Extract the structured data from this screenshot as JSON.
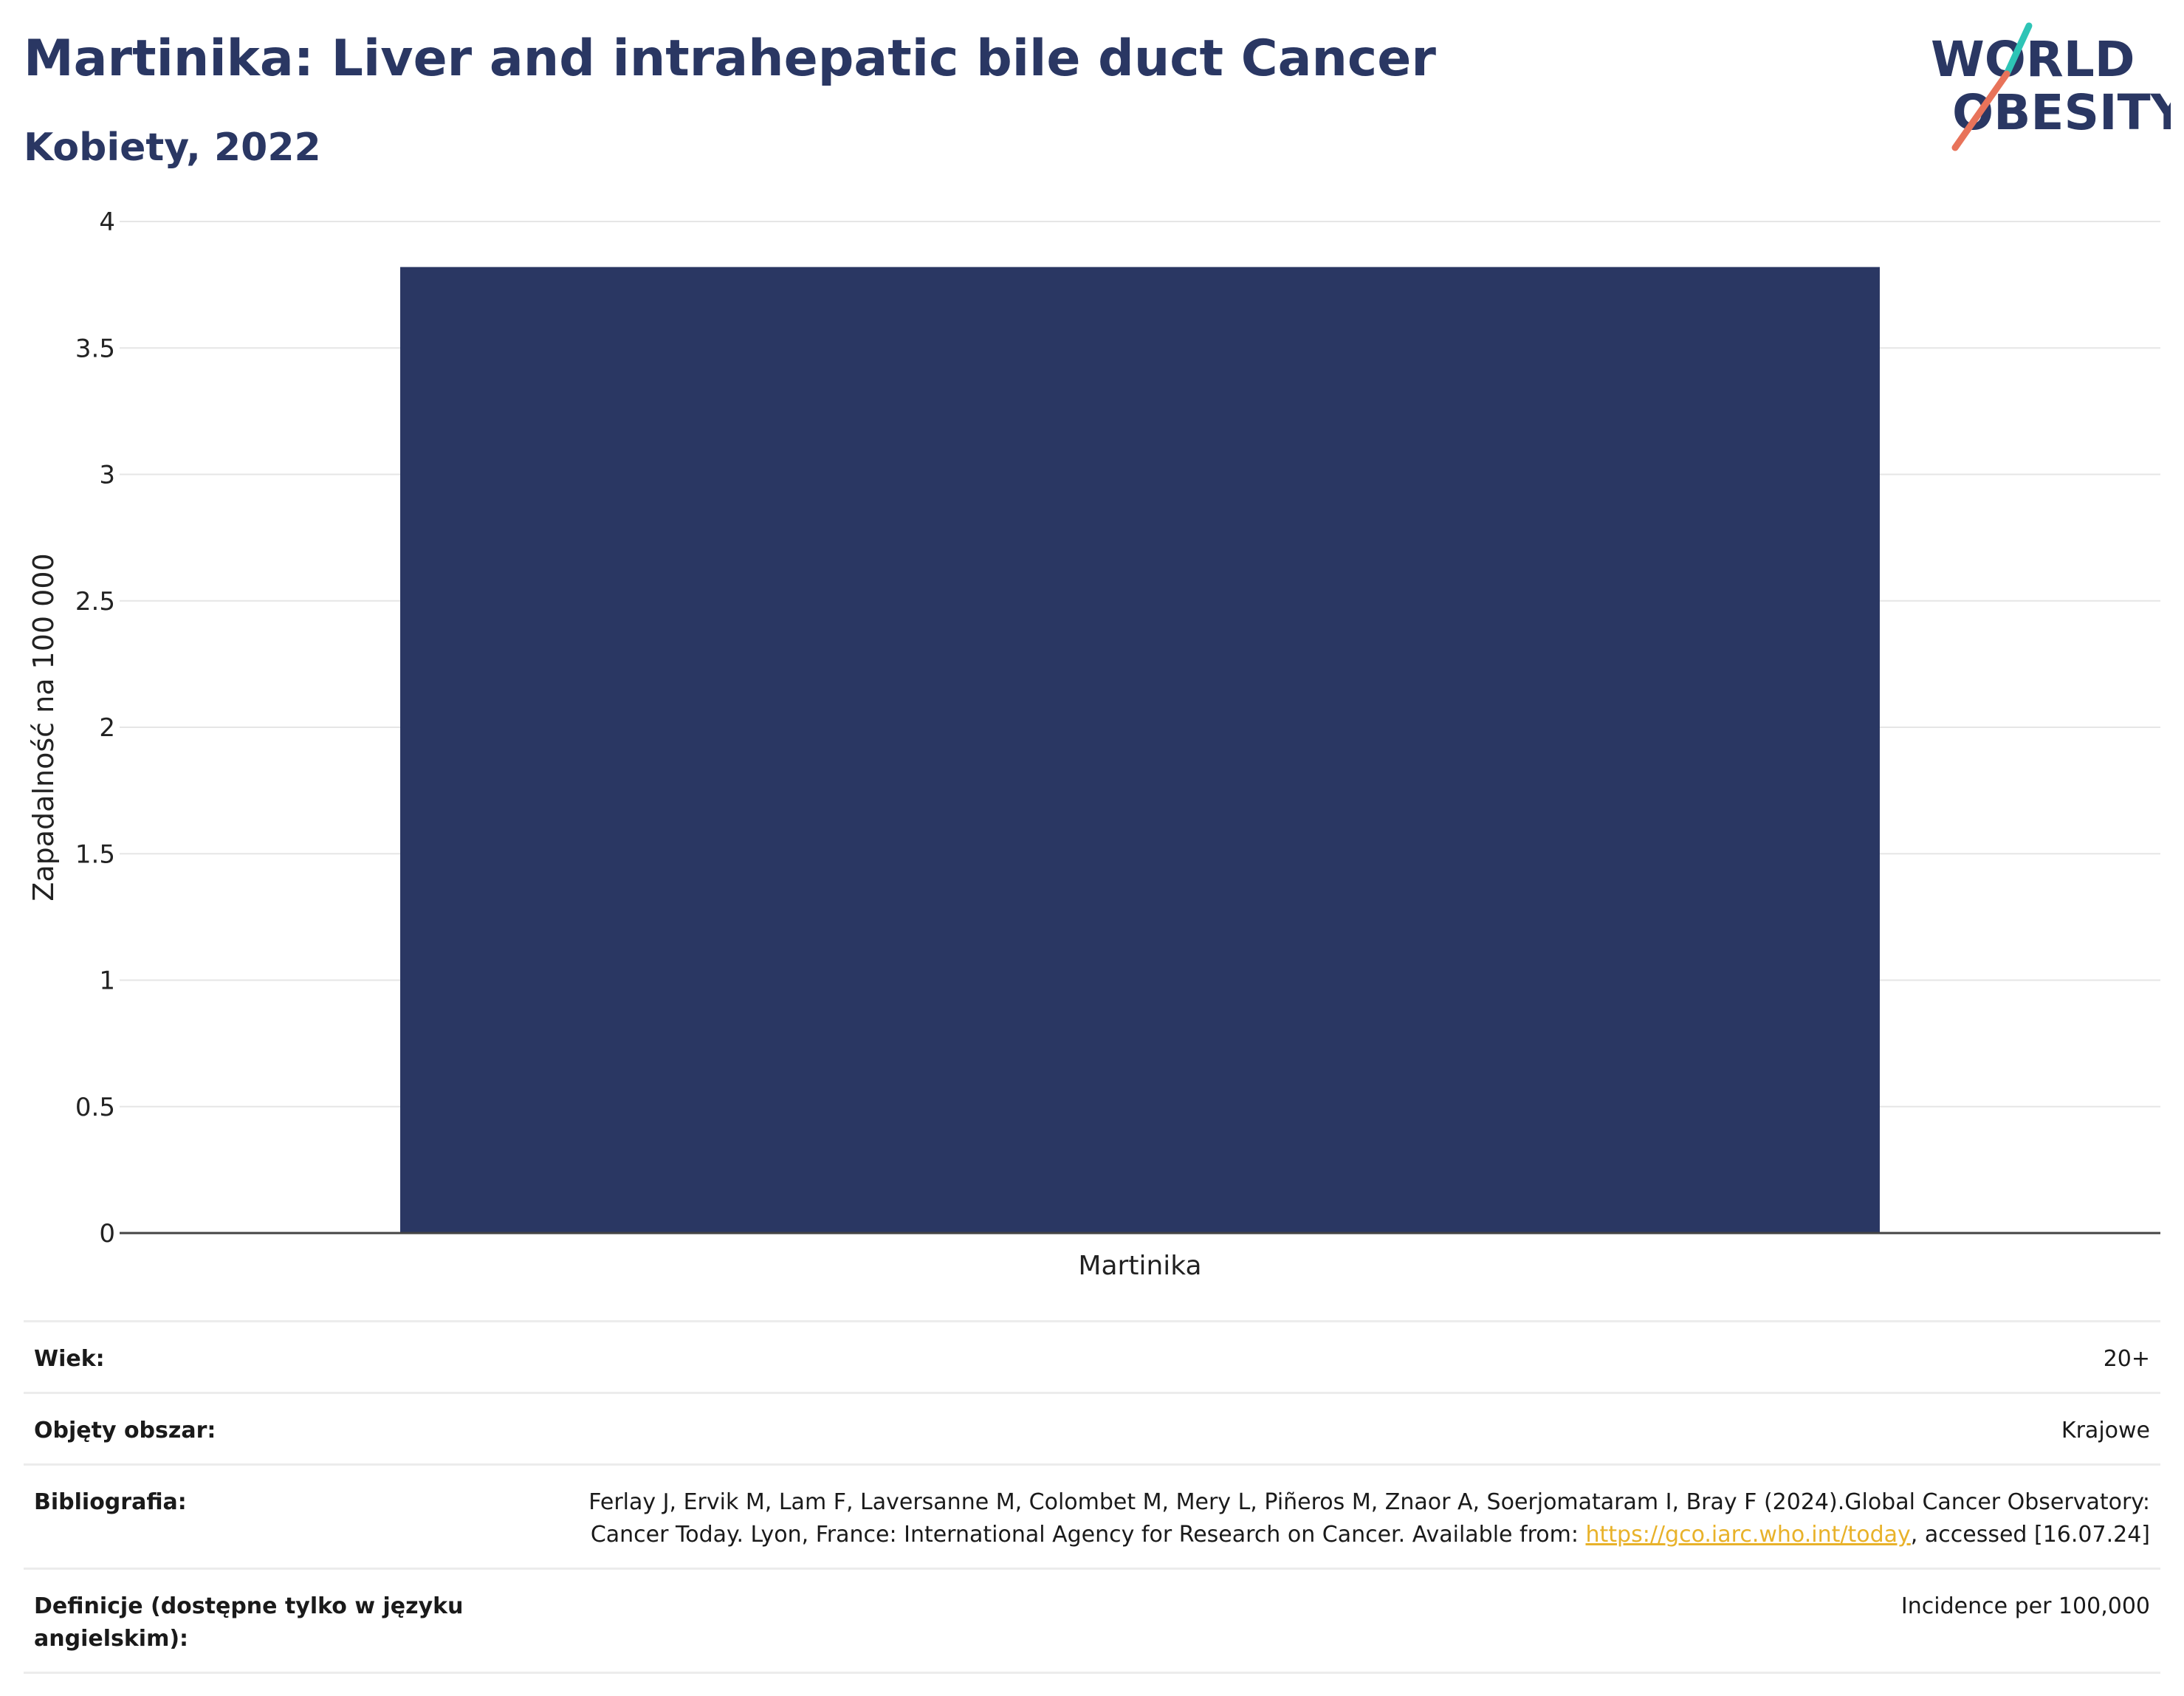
{
  "header": {
    "title": "Martinika: Liver and intrahepatic bile duct Cancer",
    "subtitle": "Kobiety, 2022"
  },
  "logo": {
    "line1": "WORLD",
    "line2": "OBESITY",
    "slash_colors": [
      "#2ec4b6",
      "#e8735a"
    ],
    "text_color": "#2a3763"
  },
  "chart_data": {
    "type": "bar",
    "categories": [
      "Martinika"
    ],
    "values": [
      3.82
    ],
    "title": "",
    "xlabel": "",
    "ylabel": "Zapadalność na 100 000",
    "ylim": [
      0,
      4
    ],
    "yticks": [
      0,
      0.5,
      1,
      1.5,
      2,
      2.5,
      3,
      3.5,
      4
    ],
    "ytick_labels": [
      "0",
      "0.5",
      "1",
      "1.5",
      "2",
      "2.5",
      "3",
      "3.5",
      "4"
    ],
    "grid": true,
    "bar_color": "#2a3763"
  },
  "info": {
    "rows": [
      {
        "label": "Wiek:",
        "value": "20+"
      },
      {
        "label": "Objęty obszar:",
        "value": "Krajowe"
      },
      {
        "label": "Bibliografia:",
        "value_pre": "Ferlay J, Ervik M, Lam F, Laversanne M, Colombet M, Mery L, Piñeros M, Znaor A, Soerjomataram I, Bray F (2024).Global Cancer Observatory: Cancer Today. Lyon, France: International Agency for Research on Cancer. Available from: ",
        "link": "https://gco.iarc.who.int/today",
        "value_post": ", accessed [16.07.24]"
      },
      {
        "label": "Definicje (dostępne tylko w języku angielskim):",
        "value": "Incidence per 100,000"
      }
    ]
  }
}
